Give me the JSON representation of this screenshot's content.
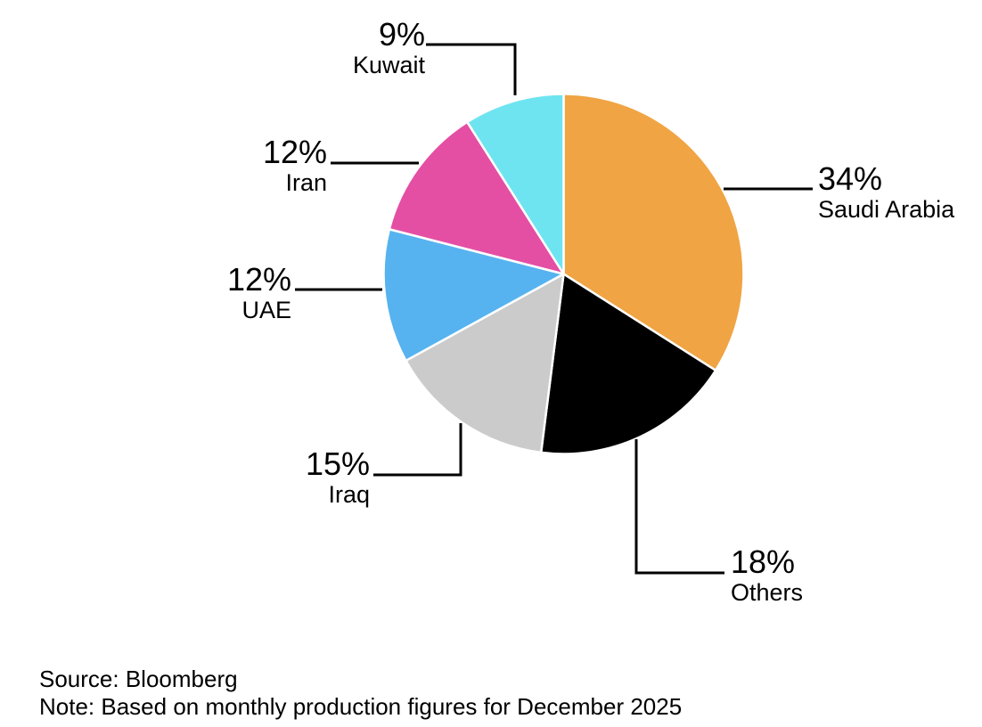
{
  "chart_data": {
    "type": "pie",
    "direction": "clockwise",
    "start_angle_deg": 0,
    "slice_border_color": "#FFFFFF",
    "legend": "none",
    "slices": [
      {
        "name": "Saudi Arabia",
        "value": 34,
        "label": "34%",
        "color": "#F0A443"
      },
      {
        "name": "Others",
        "value": 18,
        "label": "18%",
        "color": "#000000"
      },
      {
        "name": "Iraq",
        "value": 15,
        "label": "15%",
        "color": "#CBCBCB"
      },
      {
        "name": "UAE",
        "value": 12,
        "label": "12%",
        "color": "#57B3EF"
      },
      {
        "name": "Iran",
        "value": 12,
        "label": "12%",
        "color": "#E44FA4"
      },
      {
        "name": "Kuwait",
        "value": 9,
        "label": "9%",
        "color": "#6FE4F1"
      }
    ]
  },
  "footer": {
    "source": "Source: Bloomberg",
    "note": "Note: Based on monthly production figures for December 2025"
  },
  "colors": {
    "background": "#FFFFFF",
    "text": "#000000",
    "connector": "#000000"
  }
}
